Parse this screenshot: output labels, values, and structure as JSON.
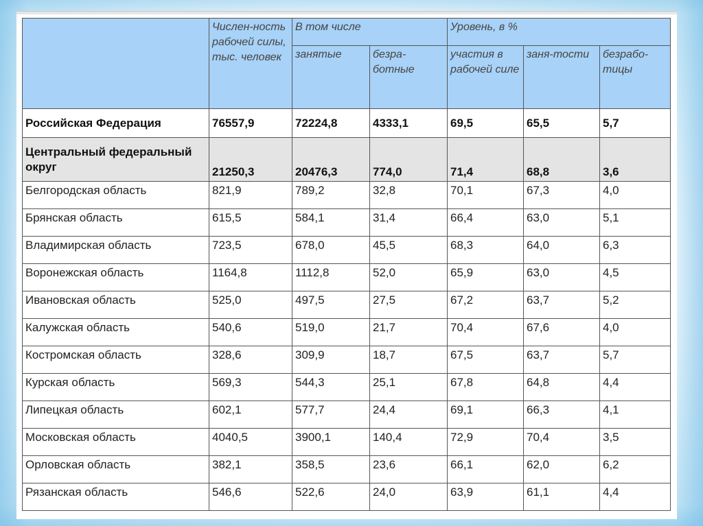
{
  "header": {
    "col_labor_force": "Числен-ность рабочей силы, тыс. человек",
    "col_including": "В том числе",
    "col_employed": "занятые",
    "col_unemployed": "безра-ботные",
    "col_level": "Уровень, в %",
    "col_participation": "участия в рабочей силе",
    "col_employment": "заня-тости",
    "col_unemployment": "безрабо-тицы"
  },
  "rows": [
    {
      "region": "Российская Федерация",
      "labor": "76557,9",
      "employed": "72224,8",
      "unemployed": "4333,1",
      "participation": "69,5",
      "employment": "65,5",
      "unemployment": "5,7"
    },
    {
      "region": "Центральный федеральный округ",
      "labor": "21250,3",
      "employed": "20476,3",
      "unemployed": "774,0",
      "participation": "71,4",
      "employment": "68,8",
      "unemployment": "3,6"
    },
    {
      "region": "Белгородская область",
      "labor": "821,9",
      "employed": "789,2",
      "unemployed": "32,8",
      "participation": "70,1",
      "employment": "67,3",
      "unemployment": "4,0"
    },
    {
      "region": "Брянская область",
      "labor": "615,5",
      "employed": "584,1",
      "unemployed": "31,4",
      "participation": "66,4",
      "employment": "63,0",
      "unemployment": "5,1"
    },
    {
      "region": "Владимирская область",
      "labor": "723,5",
      "employed": "678,0",
      "unemployed": "45,5",
      "participation": "68,3",
      "employment": "64,0",
      "unemployment": "6,3"
    },
    {
      "region": "Воронежская область",
      "labor": "1164,8",
      "employed": "1112,8",
      "unemployed": "52,0",
      "participation": "65,9",
      "employment": "63,0",
      "unemployment": "4,5"
    },
    {
      "region": "Ивановская область",
      "labor": "525,0",
      "employed": "497,5",
      "unemployed": "27,5",
      "participation": "67,2",
      "employment": "63,7",
      "unemployment": "5,2"
    },
    {
      "region": "Калужская область",
      "labor": "540,6",
      "employed": "519,0",
      "unemployed": "21,7",
      "participation": "70,4",
      "employment": "67,6",
      "unemployment": "4,0"
    },
    {
      "region": "Костромская область",
      "labor": "328,6",
      "employed": "309,9",
      "unemployed": "18,7",
      "participation": "67,5",
      "employment": "63,7",
      "unemployment": "5,7"
    },
    {
      "region": "Курская область",
      "labor": "569,3",
      "employed": "544,3",
      "unemployed": "25,1",
      "participation": "67,8",
      "employment": "64,8",
      "unemployment": "4,4"
    },
    {
      "region": "Липецкая область",
      "labor": "602,1",
      "employed": "577,7",
      "unemployed": "24,4",
      "participation": "69,1",
      "employment": "66,3",
      "unemployment": "4,1"
    },
    {
      "region": "Московская область",
      "labor": "4040,5",
      "employed": "3900,1",
      "unemployed": "140,4",
      "participation": "72,9",
      "employment": "70,4",
      "unemployment": "3,5"
    },
    {
      "region": "Орловская область",
      "labor": "382,1",
      "employed": "358,5",
      "unemployed": "23,6",
      "participation": "66,1",
      "employment": "62,0",
      "unemployment": "6,2"
    },
    {
      "region": "Рязанская область",
      "labor": "546,6",
      "employed": "522,6",
      "unemployed": "24,0",
      "participation": "63,9",
      "employment": "61,1",
      "unemployment": "4,4"
    }
  ],
  "colors": {
    "header_bg": "#a8d2f7",
    "federal_district_bg": "#e4e4e4",
    "slide_frame": "#b6def3"
  }
}
